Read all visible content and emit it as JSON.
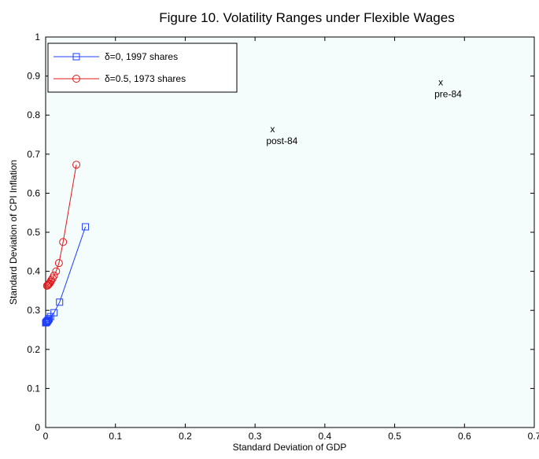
{
  "chart_data": {
    "type": "scatter",
    "title": "Figure 10. Volatility Ranges under Flexible Wages",
    "xlabel": "Standard Deviation of GDP",
    "ylabel": "Standard Deviation of CPI Inflation",
    "xlim": [
      0,
      0.7
    ],
    "ylim": [
      0,
      1
    ],
    "xticks": [
      0,
      0.1,
      0.2,
      0.3,
      0.4,
      0.5,
      0.6,
      0.7
    ],
    "xtick_labels": [
      "0",
      "0.1",
      "0.2",
      "0.3",
      "0.4",
      "0.5",
      "0.6",
      "0.7"
    ],
    "yticks": [
      0,
      0.1,
      0.2,
      0.3,
      0.4,
      0.5,
      0.6,
      0.7,
      0.8,
      0.9,
      1
    ],
    "ytick_labels": [
      "0",
      "0.1",
      "0.2",
      "0.3",
      "0.4",
      "0.5",
      "0.6",
      "0.7",
      "0.8",
      "0.9",
      "1"
    ],
    "grid": false,
    "legend_position": "top-left",
    "plot_background": "#f4fcfc",
    "series": [
      {
        "name": "δ=0, 1997 shares",
        "color": "#1f3fff",
        "marker": "square",
        "points": [
          [
            0.057,
            0.514
          ],
          [
            0.02,
            0.321
          ],
          [
            0.012,
            0.294
          ],
          [
            0.007,
            0.284
          ],
          [
            0.005,
            0.279
          ],
          [
            0.004,
            0.276
          ],
          [
            0.003,
            0.274
          ],
          [
            0.002,
            0.272
          ],
          [
            0.002,
            0.271
          ],
          [
            0.001,
            0.27
          ],
          [
            0.001,
            0.269
          ],
          [
            0.0,
            0.268
          ]
        ]
      },
      {
        "name": "δ=0.5, 1973 shares",
        "color": "#e0181a",
        "marker": "circle",
        "points": [
          [
            0.044,
            0.673
          ],
          [
            0.025,
            0.475
          ],
          [
            0.019,
            0.421
          ],
          [
            0.015,
            0.4
          ],
          [
            0.012,
            0.389
          ],
          [
            0.01,
            0.382
          ],
          [
            0.008,
            0.377
          ],
          [
            0.007,
            0.373
          ],
          [
            0.006,
            0.37
          ],
          [
            0.005,
            0.368
          ],
          [
            0.004,
            0.366
          ],
          [
            0.003,
            0.364
          ],
          [
            0.002,
            0.363
          ]
        ]
      }
    ],
    "annotations": [
      {
        "marker": "x",
        "label": "pre-84",
        "x": 0.566,
        "y": 0.87
      },
      {
        "marker": "x",
        "label": "post-84",
        "x": 0.325,
        "y": 0.75
      }
    ]
  }
}
